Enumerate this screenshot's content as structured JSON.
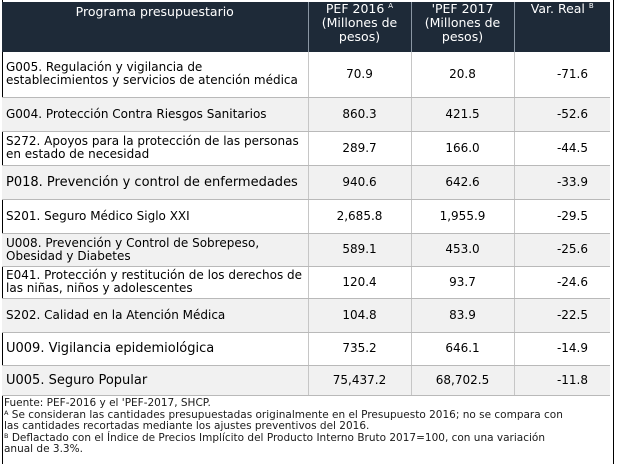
{
  "table": {
    "headers": {
      "programa": "Programa presupuestario",
      "pef2016": "PEF 2016",
      "pef2016_sup": "A",
      "pef2016_unit": "(Millones de pesos)",
      "pef2017": "PEF 2017",
      "pef2017_pre": "'",
      "pef2017_unit": "(Millones de pesos)",
      "var": "Var. Real",
      "var_sup": "B"
    },
    "rows": [
      {
        "programa": "G005. Regulación y vigilancia de establecimientos y servicios de atención médica",
        "pef2016": "70.9",
        "pef2017": "20.8",
        "var": "-71.6"
      },
      {
        "programa": "G004. Protección Contra Riesgos Sanitarios",
        "pef2016": "860.3",
        "pef2017": "421.5",
        "var": "-52.6"
      },
      {
        "programa": "S272. Apoyos para la protección de las personas en estado de necesidad",
        "pef2016": "289.7",
        "pef2017": "166.0",
        "var": "-44.5"
      },
      {
        "programa": "P018. Prevención y control de enfermedades",
        "pef2016": "940.6",
        "pef2017": "642.6",
        "var": "-33.9"
      },
      {
        "programa": "S201. Seguro Médico Siglo XXI",
        "pef2016": "2,685.8",
        "pef2017": "1,955.9",
        "var": "-29.5"
      },
      {
        "programa": "U008. Prevención y Control de Sobrepeso, Obesidad y Diabetes",
        "pef2016": "589.1",
        "pef2017": "453.0",
        "var": "-25.6"
      },
      {
        "programa": "E041. Protección y restitución de los derechos de las niñas, niños y adolescentes",
        "pef2016": "120.4",
        "pef2017": "93.7",
        "var": "-24.6"
      },
      {
        "programa": "S202. Calidad en la Atención Médica",
        "pef2016": "104.8",
        "pef2017": "83.9",
        "var": "-22.5"
      },
      {
        "programa": "U009. Vigilancia epidemiológica",
        "pef2016": "735.2",
        "pef2017": "646.1",
        "var": "-14.9"
      },
      {
        "programa": "U005. Seguro Popular",
        "pef2016": "75,437.2",
        "pef2017": "68,702.5",
        "var": "-11.8"
      }
    ]
  },
  "notes": {
    "source": "Fuente: PEF-2016 y el  'PEF-2017, SHCP.",
    "note_a_mark": "A",
    "note_a_line1": "Se consideran las cantidades presupuestadas originalmente en el Presupuesto 2016; no se compara con",
    "note_a_line2": "las cantidades recortadas mediante los ajustes preventivos del 2016.",
    "note_b_mark": "B",
    "note_b_line1": "Deflactado con el Índice de Precios Implícito del Producto Interno Bruto 2017=100, con una variación",
    "note_b_line2": "anual de 3.3%."
  }
}
